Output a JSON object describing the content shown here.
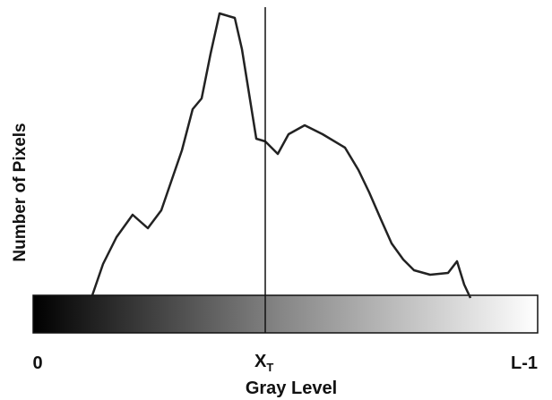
{
  "y_axis_label": "Number of Pixels",
  "x_axis_label": "Gray Level",
  "ticks": {
    "start": "0",
    "threshold": {
      "main": "X",
      "sub": "T"
    },
    "end": "L-1"
  }
}
